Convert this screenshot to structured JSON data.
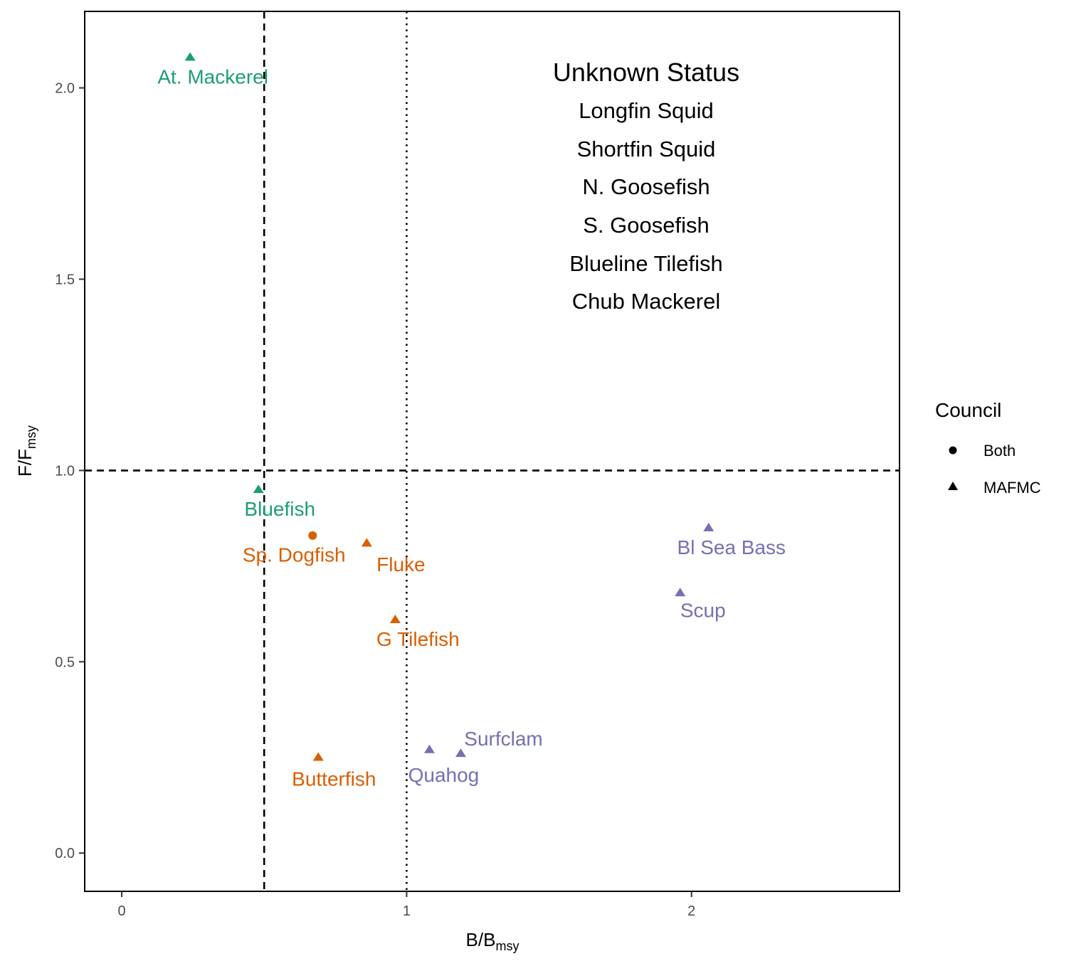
{
  "chart_data": {
    "type": "scatter",
    "xlabel": {
      "main": "B/B",
      "sub": "msy"
    },
    "ylabel": {
      "main": "F/F",
      "sub": "msy"
    },
    "xlim": [
      -0.13,
      2.73
    ],
    "ylim": [
      -0.1,
      2.2
    ],
    "x_ticks": [
      {
        "value": 0,
        "label": "0"
      },
      {
        "value": 1,
        "label": "1"
      },
      {
        "value": 2,
        "label": "2"
      }
    ],
    "y_ticks": [
      {
        "value": 0,
        "label": "0.0"
      },
      {
        "value": 0.5,
        "label": "0.5"
      },
      {
        "value": 1,
        "label": "1.0"
      },
      {
        "value": 1.5,
        "label": "1.5"
      },
      {
        "value": 2,
        "label": "2.0"
      }
    ],
    "reference_lines": [
      {
        "axis": "x",
        "value": 0.5,
        "style": "dashed"
      },
      {
        "axis": "x",
        "value": 1,
        "style": "dotted"
      },
      {
        "axis": "y",
        "value": 1,
        "style": "dashed"
      }
    ],
    "grid": false,
    "colors": {
      "green": "#1b9e77",
      "orange": "#d95f02",
      "purple": "#7570b3"
    },
    "points": [
      {
        "name": "At. Mackerel",
        "x": 0.24,
        "y": 2.08,
        "shape": "triangle",
        "color": "#1b9e77",
        "lx": 0.32,
        "ly": 2.03
      },
      {
        "name": "Bluefish",
        "x": 0.48,
        "y": 0.95,
        "shape": "triangle",
        "color": "#1b9e77",
        "lx": 0.555,
        "ly": 0.9
      },
      {
        "name": "Sp. Dogfish",
        "x": 0.67,
        "y": 0.83,
        "shape": "circle",
        "color": "#d95f02",
        "lx": 0.605,
        "ly": 0.78
      },
      {
        "name": "Fluke",
        "x": 0.86,
        "y": 0.81,
        "shape": "triangle",
        "color": "#d95f02",
        "lx": 0.98,
        "ly": 0.755
      },
      {
        "name": "G Tilefish",
        "x": 0.96,
        "y": 0.61,
        "shape": "triangle",
        "color": "#d95f02",
        "lx": 1.04,
        "ly": 0.56
      },
      {
        "name": "Butterfish",
        "x": 0.69,
        "y": 0.25,
        "shape": "triangle",
        "color": "#d95f02",
        "lx": 0.745,
        "ly": 0.195
      },
      {
        "name": "Quahog",
        "x": 1.08,
        "y": 0.27,
        "shape": "triangle",
        "color": "#7570b3",
        "lx": 1.13,
        "ly": 0.205
      },
      {
        "name": "Surfclam",
        "x": 1.19,
        "y": 0.26,
        "shape": "triangle",
        "color": "#7570b3",
        "lx": 1.34,
        "ly": 0.3
      },
      {
        "name": "Bl Sea Bass",
        "x": 2.06,
        "y": 0.85,
        "shape": "triangle",
        "color": "#7570b3",
        "lx": 2.14,
        "ly": 0.8
      },
      {
        "name": "Scup",
        "x": 1.96,
        "y": 0.68,
        "shape": "triangle",
        "color": "#7570b3",
        "lx": 2.04,
        "ly": 0.635
      }
    ],
    "unknown_status": {
      "title": "Unknown Status",
      "items": [
        "Longfin Squid",
        "Shortfin Squid",
        "N. Goosefish",
        "S. Goosefish",
        "Blueline Tilefish",
        "Chub Mackerel"
      ]
    },
    "legend": {
      "title": "Council",
      "placement": "right",
      "entries": [
        {
          "label": "Both",
          "shape": "circle"
        },
        {
          "label": "MAFMC",
          "shape": "triangle"
        }
      ]
    }
  }
}
